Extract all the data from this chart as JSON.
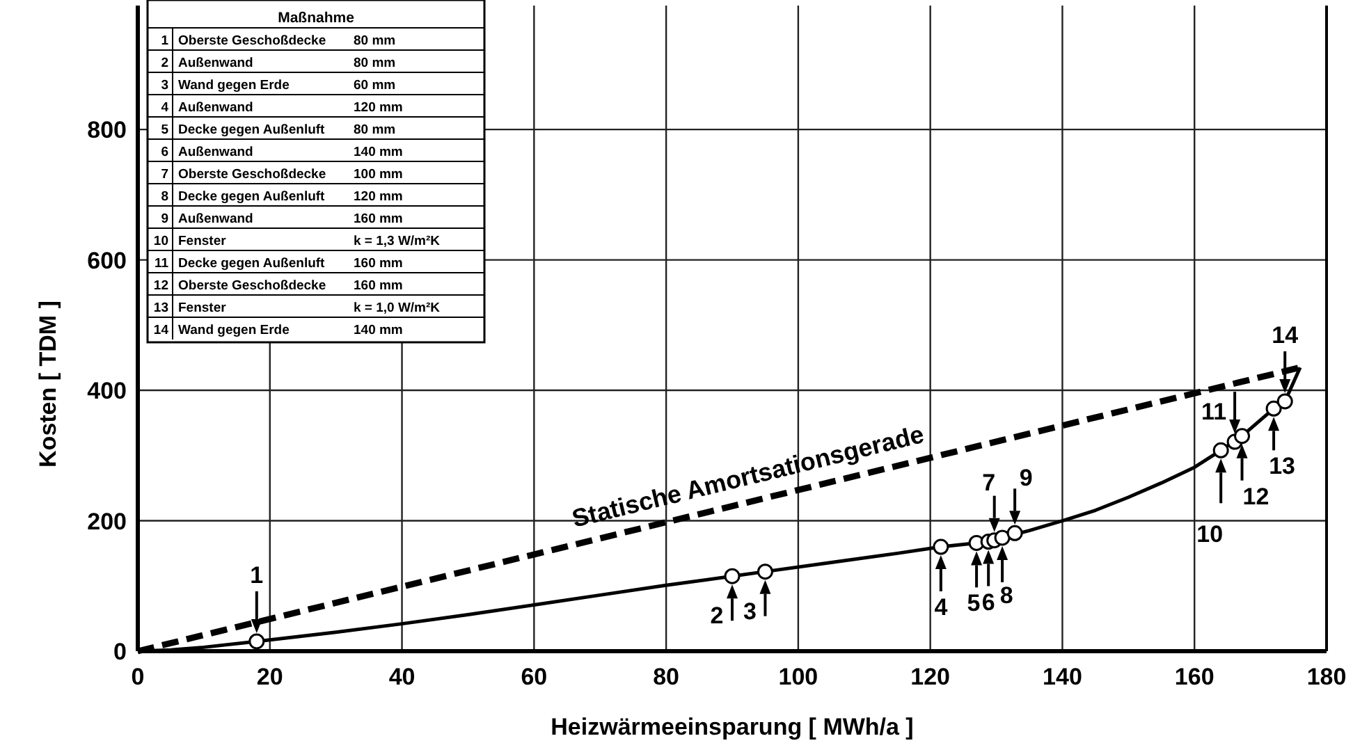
{
  "chart_data": {
    "type": "line",
    "xlabel": "Heizwärmeeinsparung  [ MWh/a ]",
    "ylabel": "Kosten  [ TDM ]",
    "xlim": [
      0,
      180
    ],
    "xticks": [
      0,
      20,
      40,
      60,
      80,
      100,
      120,
      140,
      160,
      180
    ],
    "ylim": [
      0,
      990
    ],
    "yticks": [
      0,
      200,
      400,
      600,
      800
    ],
    "grid": true,
    "legend": false,
    "series": [
      {
        "color": "#000000",
        "line_style": "solid",
        "marker": "none",
        "x": [
          0,
          5,
          10,
          18,
          30,
          40,
          50,
          60,
          70,
          80,
          90,
          95,
          105,
          115,
          121.6,
          127,
          130.9,
          135,
          140,
          145,
          150,
          155,
          160,
          164,
          167.2,
          172,
          173.7,
          176
        ],
        "values": [
          0,
          2,
          6,
          15,
          29,
          42,
          56,
          71,
          86,
          101,
          115,
          122,
          136,
          150,
          160,
          166,
          174,
          185,
          200,
          216,
          236,
          258,
          282,
          308,
          330,
          372,
          383,
          435
        ]
      },
      {
        "name": "Statische Amortsationsgerade",
        "color": "#000000",
        "line_style": "dashed",
        "marker": "none",
        "x": [
          0,
          176
        ],
        "values": [
          0,
          435
        ]
      },
      {
        "type": "scatter",
        "color": "#000000",
        "marker": "circle",
        "x": [
          18,
          90,
          95,
          121.6,
          127,
          128.8,
          129.7,
          130.9,
          132.8,
          164,
          166.1,
          167.2,
          172,
          173.7
        ],
        "values": [
          15,
          115,
          122,
          160,
          166,
          168,
          170,
          174,
          181,
          308,
          321,
          330,
          372,
          383
        ]
      }
    ],
    "annotations": [
      {
        "text": "1",
        "x": 18,
        "y": 15
      },
      {
        "text": "2",
        "x": 90,
        "y": 115
      },
      {
        "text": "3",
        "x": 95,
        "y": 122
      },
      {
        "text": "4",
        "x": 121.6,
        "y": 160
      },
      {
        "text": "5",
        "x": 127,
        "y": 166
      },
      {
        "text": "6",
        "x": 128.8,
        "y": 168
      },
      {
        "text": "7",
        "x": 129.7,
        "y": 170
      },
      {
        "text": "8",
        "x": 130.9,
        "y": 174
      },
      {
        "text": "9",
        "x": 132.8,
        "y": 181
      },
      {
        "text": "10",
        "x": 164,
        "y": 308
      },
      {
        "text": "11",
        "x": 166.1,
        "y": 321
      },
      {
        "text": "12",
        "x": 167.2,
        "y": 330
      },
      {
        "text": "13",
        "x": 172,
        "y": 372
      },
      {
        "text": "14",
        "x": 173.7,
        "y": 383
      },
      "Maßnahme",
      "1  Oberste Geschoßdecke  80 mm",
      "2  Außenwand  80 mm",
      "3  Wand gegen Erde  60 mm",
      "4  Außenwand  120 mm",
      "5  Decke gegen Außenluft  80 mm",
      "6  Außenwand  140 mm",
      "7  Oberste Geschoßdecke  100 mm",
      "8  Decke gegen Außenluft  120 mm",
      "9  Außenwand  160 mm",
      "10  Fenster  k = 1,3 W/m²K",
      "11  Decke gegen Außenluft  160 mm",
      "12  Oberste Geschoßdecke  160 mm",
      "13  Fenster  k = 1,0 W/m²K",
      "14  Wand gegen Erde  140 mm"
    ]
  }
}
